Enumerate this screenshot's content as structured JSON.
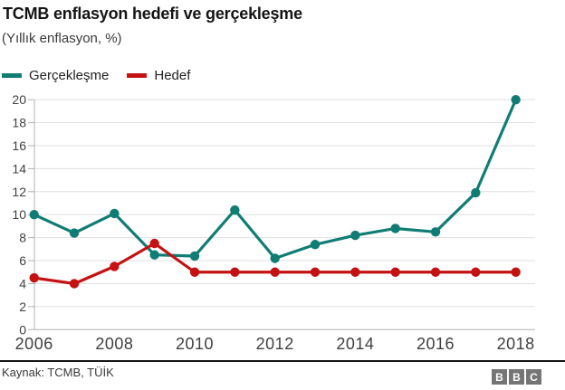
{
  "header": {
    "title": "TCMB enflasyon hedefi ve gerçekleşme",
    "subtitle": "(Yıllık enflasyon, %)"
  },
  "legend": [
    {
      "label": "Gerçekleşme",
      "color": "#107d74"
    },
    {
      "label": "Hedef",
      "color": "#c41212"
    }
  ],
  "chart_data": {
    "type": "line",
    "x": [
      2006,
      2007,
      2008,
      2009,
      2010,
      2011,
      2012,
      2013,
      2014,
      2015,
      2016,
      2017,
      2018
    ],
    "x_tick_labels": [
      "2006",
      "2008",
      "2010",
      "2012",
      "2014",
      "2016",
      "2018"
    ],
    "series": [
      {
        "name": "Gerçekleşme",
        "color": "#107d74",
        "values": [
          10.0,
          8.4,
          10.1,
          6.5,
          6.4,
          10.4,
          6.2,
          7.4,
          8.2,
          8.8,
          8.5,
          11.9,
          20.0
        ]
      },
      {
        "name": "Hedef",
        "color": "#c41212",
        "values": [
          4.5,
          4.0,
          5.5,
          7.5,
          5.0,
          5.0,
          5.0,
          5.0,
          5.0,
          5.0,
          5.0,
          5.0,
          5.0
        ]
      }
    ],
    "ylim": [
      0,
      20
    ],
    "yticks": [
      0,
      2,
      4,
      6,
      8,
      10,
      12,
      14,
      16,
      18,
      20
    ],
    "grid": "horizontal",
    "legend_position": "top-left",
    "marker": "circle",
    "title": "TCMB enflasyon hedefi ve gerçekleşme",
    "subtitle": "(Yıllık enflasyon, %)",
    "source": "Kaynak: TCMB, TÜİK"
  },
  "footer": {
    "source": "Kaynak: TCMB, TÜİK",
    "logo_letters": [
      "B",
      "B",
      "C"
    ]
  },
  "colors": {
    "gridline": "#e0e0e0",
    "axis": "#b0b0b0",
    "bbc_gray": "#757575"
  }
}
